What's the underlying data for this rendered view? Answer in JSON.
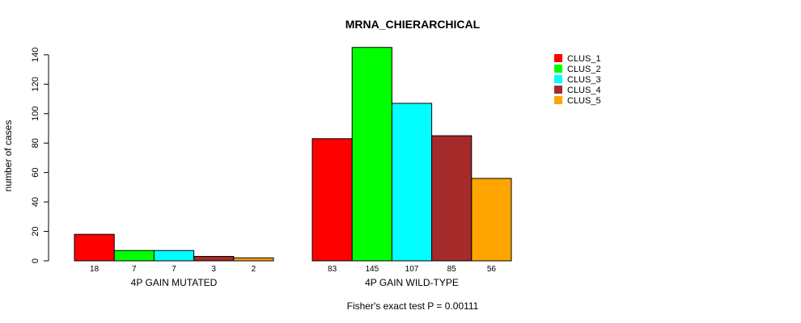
{
  "chart_data": {
    "type": "bar",
    "title": "MRNA_CHIERARCHICAL",
    "ylabel": "number of cases",
    "ylim": [
      0,
      145
    ],
    "yticks": [
      0,
      20,
      40,
      60,
      80,
      100,
      120,
      140
    ],
    "groups": [
      {
        "label": "4P GAIN MUTATED",
        "values": [
          18,
          7,
          7,
          3,
          2
        ],
        "count_labels": [
          "18",
          "7",
          "7",
          "3",
          "2"
        ]
      },
      {
        "label": "4P GAIN WILD-TYPE",
        "values": [
          83,
          145,
          107,
          85,
          56
        ],
        "count_labels": [
          "83",
          "145",
          "107",
          "85",
          "56"
        ]
      }
    ],
    "series": [
      {
        "name": "CLUS_1",
        "color": "#ff0000"
      },
      {
        "name": "CLUS_2",
        "color": "#00ff00"
      },
      {
        "name": "CLUS_3",
        "color": "#00ffff"
      },
      {
        "name": "CLUS_4",
        "color": "#a52a2a"
      },
      {
        "name": "CLUS_5",
        "color": "#ffa500"
      }
    ],
    "legend_position": "top-right",
    "footer": "Fisher's exact test P = 0.00111"
  }
}
